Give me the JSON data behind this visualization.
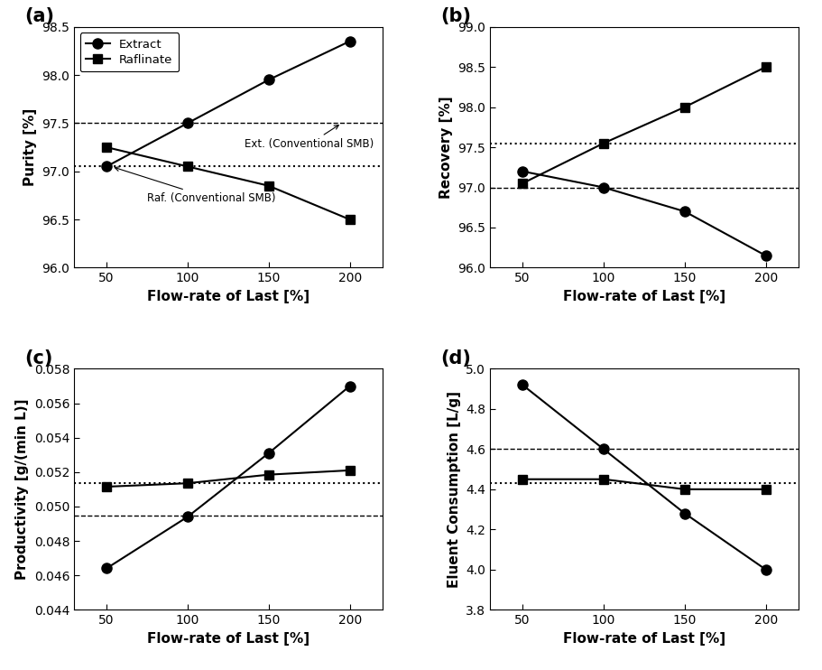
{
  "x": [
    50,
    100,
    150,
    200
  ],
  "panel_a": {
    "extract": [
      97.05,
      97.5,
      97.95,
      98.35
    ],
    "raffinate": [
      97.25,
      97.05,
      96.85,
      96.5
    ],
    "hline_dashed": 97.5,
    "hline_dotted": 97.05,
    "ylabel": "Purity [%]",
    "ylim": [
      96.0,
      98.5
    ],
    "yticks": [
      96.0,
      96.5,
      97.0,
      97.5,
      98.0,
      98.5
    ],
    "ytick_labels": [
      "96.0",
      "96.5",
      "97.0",
      "97.5",
      "98.0",
      "98.5"
    ],
    "ann_dashed": "Ext. (Conventional SMB)",
    "ann_dotted": "Raf. (Conventional SMB)"
  },
  "panel_b": {
    "extract": [
      97.2,
      97.0,
      96.7,
      96.15
    ],
    "raffinate": [
      97.05,
      97.55,
      98.0,
      98.5
    ],
    "hline_dashed": 97.0,
    "hline_dotted": 97.55,
    "ylabel": "Recovery [%]",
    "ylim": [
      96.0,
      99.0
    ],
    "yticks": [
      96.0,
      96.5,
      97.0,
      97.5,
      98.0,
      98.5,
      99.0
    ],
    "ytick_labels": [
      "96.0",
      "96.5",
      "97.0",
      "97.5",
      "98.0",
      "98.5",
      "99.0"
    ]
  },
  "panel_c": {
    "extract": [
      0.0464,
      0.0494,
      0.0531,
      0.057
    ],
    "raffinate": [
      0.05115,
      0.05135,
      0.05185,
      0.0521
    ],
    "hline_dashed": 0.04945,
    "hline_dotted": 0.05135,
    "ylabel": "Productivity [g/(min L)]",
    "ylim": [
      0.044,
      0.058
    ],
    "yticks": [
      0.044,
      0.046,
      0.048,
      0.05,
      0.052,
      0.054,
      0.056,
      0.058
    ],
    "ytick_labels": [
      "0.044",
      "0.046",
      "0.048",
      "0.050",
      "0.052",
      "0.054",
      "0.056",
      "0.058"
    ]
  },
  "panel_d": {
    "extract": [
      4.92,
      4.6,
      4.28,
      4.0
    ],
    "raffinate": [
      4.45,
      4.45,
      4.4,
      4.4
    ],
    "hline_dashed": 4.6,
    "hline_dotted": 4.43,
    "ylabel": "Eluent Consumption [L/g]",
    "ylim": [
      3.8,
      5.0
    ],
    "yticks": [
      3.8,
      4.0,
      4.2,
      4.4,
      4.6,
      4.8,
      5.0
    ],
    "ytick_labels": [
      "3.8",
      "4.0",
      "4.2",
      "4.4",
      "4.6",
      "4.8",
      "5.0"
    ]
  },
  "xlabel": "Flow-rate of Last [%]",
  "xticks": [
    50,
    100,
    150,
    200
  ],
  "xtick_labels": [
    "50",
    "100",
    "150",
    "200"
  ],
  "legend_extract": "Extract",
  "legend_raffinate": "Raflinate",
  "color": "black",
  "marker_circle": "o",
  "marker_square": "s",
  "markersize": 8,
  "linewidth": 1.5,
  "label_fontsize": 11,
  "tick_fontsize": 10,
  "panel_label_fontsize": 15
}
